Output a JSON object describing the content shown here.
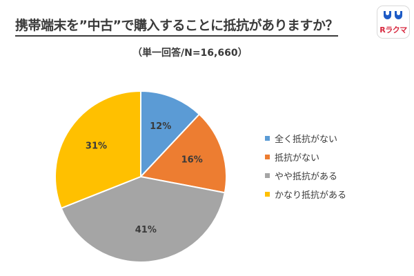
{
  "header": {
    "title": "携帯端末を”中古”で購入することに抵抗がありますか？",
    "subtitle": "（単一回答/N=16,660）"
  },
  "logo": {
    "text": "Rラクマ",
    "colors": {
      "text": "#d7263d",
      "icon": "#1e5bc6"
    }
  },
  "chart_data": {
    "type": "pie",
    "title": "携帯端末を”中古”で購入することに抵抗がありますか？",
    "subtitle": "（単一回答/N=16,660）",
    "categories": [
      "全く抵抗がない",
      "抵抗がない",
      "やや抵抗がある",
      "かなり抵抗がある"
    ],
    "values": [
      12,
      16,
      41,
      31
    ],
    "labels": [
      "12%",
      "16%",
      "41%",
      "31%"
    ],
    "unit": "%",
    "colors": [
      "#5b9bd5",
      "#ed7d31",
      "#a5a5a5",
      "#ffc000"
    ],
    "start": "12 o'clock",
    "direction": "clockwise",
    "legend_position": "right"
  }
}
